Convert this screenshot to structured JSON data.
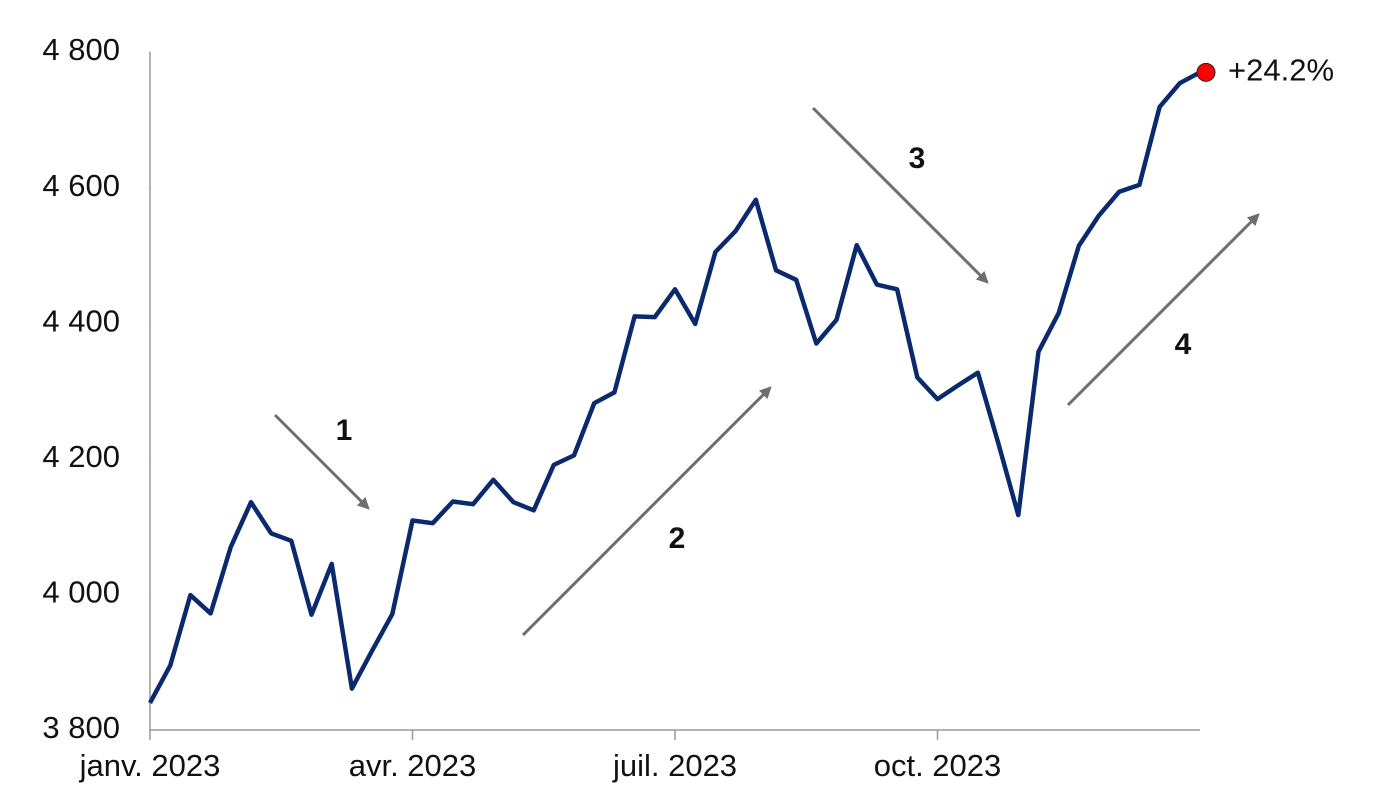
{
  "chart_data": {
    "type": "line",
    "categories": [
      "janv. 2023",
      null,
      null,
      null,
      null,
      null,
      null,
      null,
      null,
      null,
      null,
      null,
      null,
      "avr. 2023",
      null,
      null,
      null,
      null,
      null,
      null,
      null,
      null,
      null,
      null,
      null,
      null,
      "juil. 2023",
      null,
      null,
      null,
      null,
      null,
      null,
      null,
      null,
      null,
      null,
      null,
      null,
      "oct. 2023",
      null,
      null,
      null,
      null,
      null,
      null,
      null,
      null,
      null,
      null,
      null,
      null,
      null
    ],
    "series": [
      {
        "color": "#0b2a6e",
        "values": [
          3840,
          3895,
          3999,
          3972,
          4070,
          4136,
          4090,
          4079,
          3970,
          4045,
          3861,
          3917,
          3971,
          4109,
          4105,
          4137,
          4133,
          4169,
          4136,
          4124,
          4191,
          4205,
          4282,
          4298,
          4410,
          4409,
          4450,
          4399,
          4505,
          4536,
          4582,
          4478,
          4464,
          4370,
          4405,
          4515,
          4457,
          4450,
          4320,
          4288,
          4308,
          4327,
          4224,
          4117,
          4358,
          4415,
          4514,
          4559,
          4594,
          4604,
          4719,
          4754,
          4770
        ]
      }
    ],
    "ylim": [
      3800,
      4800
    ],
    "yticks": [
      {
        "value": 3800,
        "label": "3 800"
      },
      {
        "value": 4000,
        "label": "4 000"
      },
      {
        "value": 4200,
        "label": "4 200"
      },
      {
        "value": 4400,
        "label": "4 400"
      },
      {
        "value": 4600,
        "label": "4 600"
      },
      {
        "value": 4800,
        "label": "4 800"
      }
    ],
    "end_label": "+24.2%",
    "end_marker_color": "#ff0000",
    "annotations": [
      "1",
      "2",
      "3",
      "4"
    ]
  }
}
